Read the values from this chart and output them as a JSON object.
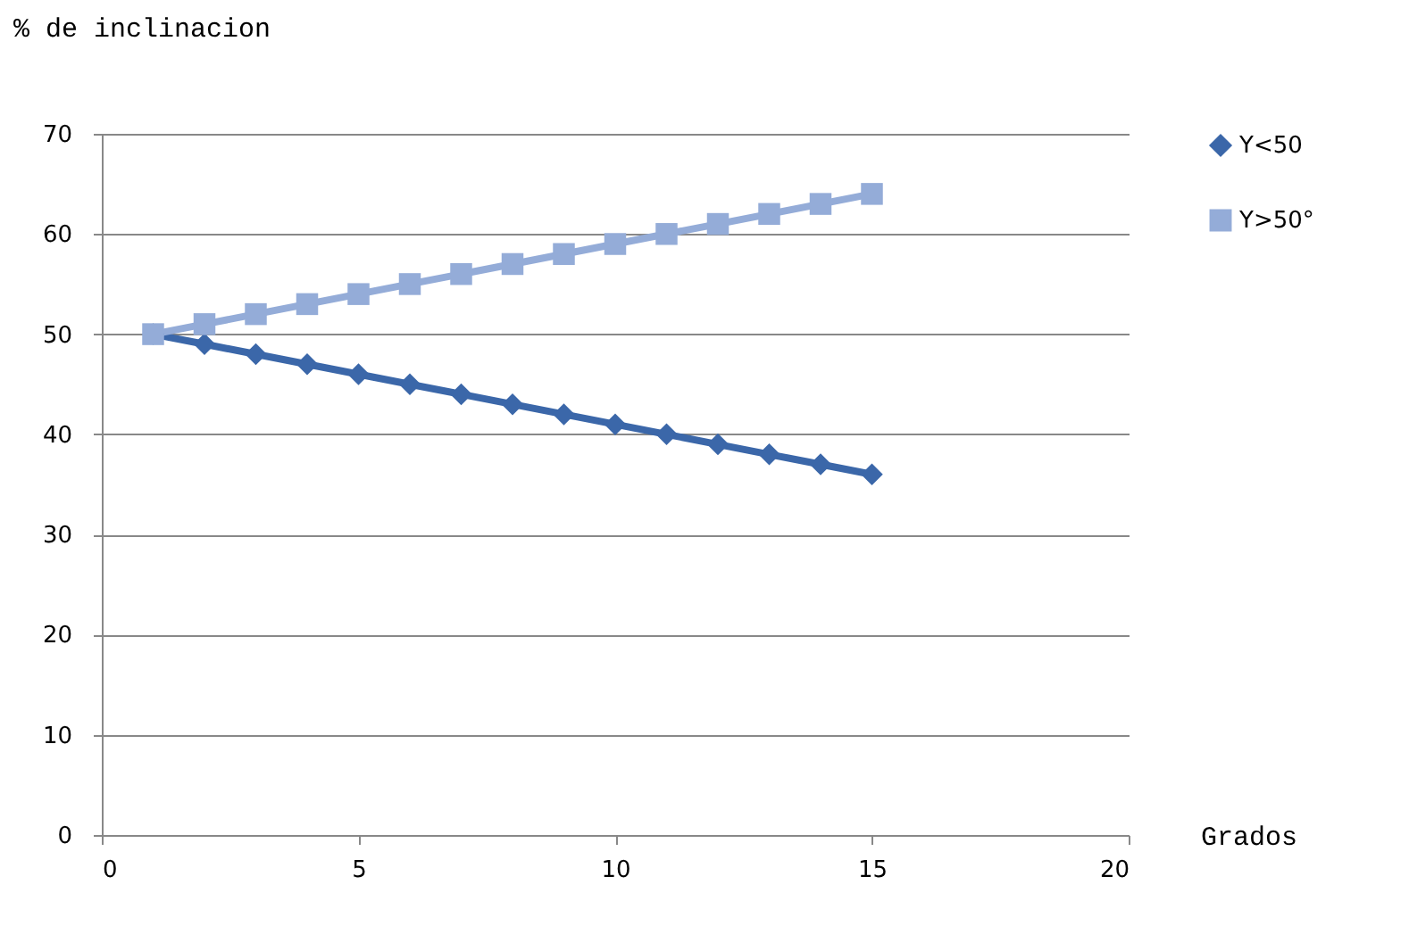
{
  "chart_data": {
    "type": "line",
    "xlabel": "Grados",
    "ylabel": "% de inclinacion",
    "x": [
      1,
      2,
      3,
      4,
      5,
      6,
      7,
      8,
      9,
      10,
      11,
      12,
      13,
      14,
      15
    ],
    "series": [
      {
        "name": "Y<50",
        "color": "#3b67a9",
        "marker": "diamond",
        "values": [
          50,
          49,
          48,
          47,
          46,
          45,
          44,
          43,
          42,
          41,
          40,
          39,
          38,
          37,
          36
        ]
      },
      {
        "name": "Y>50°",
        "color": "#94acd8",
        "marker": "square",
        "values": [
          50,
          51,
          52,
          53,
          54,
          55,
          56,
          57,
          58,
          59,
          60,
          61,
          62,
          63,
          64
        ]
      }
    ],
    "xlim": [
      0,
      20
    ],
    "xticks": [
      0,
      5,
      10,
      15,
      20
    ],
    "ylim": [
      0,
      70
    ],
    "yticks": [
      0,
      10,
      20,
      30,
      40,
      50,
      60,
      70
    ],
    "grid": "y",
    "legend": "right",
    "line_style": "solid"
  }
}
